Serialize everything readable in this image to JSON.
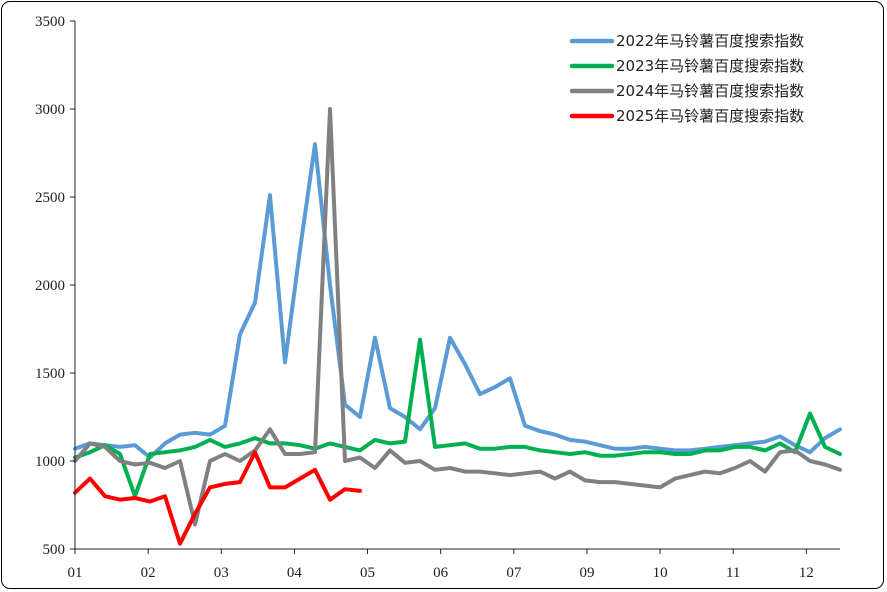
{
  "chart_data": {
    "type": "line",
    "title": "",
    "xlabel": "",
    "ylabel": "",
    "ylim": [
      500,
      3500
    ],
    "yticks": [
      500,
      1000,
      1500,
      2000,
      2500,
      3000,
      3500
    ],
    "xticks": [
      "01",
      "02",
      "03",
      "04",
      "05",
      "06",
      "07",
      "09",
      "10",
      "11",
      "12"
    ],
    "x_units": "week of year (1-52)",
    "grid": false,
    "legend_position": "top-right",
    "series": [
      {
        "name": "2022年马铃薯百度搜索指数",
        "color": "#5B9BD5",
        "x": [
          1,
          2,
          3,
          4,
          5,
          6,
          7,
          8,
          9,
          10,
          11,
          12,
          13,
          14,
          15,
          16,
          17,
          18,
          19,
          20,
          21,
          22,
          23,
          24,
          25,
          26,
          27,
          28,
          29,
          30,
          31,
          32,
          33,
          34,
          35,
          36,
          37,
          38,
          39,
          40,
          41,
          42,
          43,
          44,
          45,
          46,
          47,
          48,
          49,
          50,
          51,
          52
        ],
        "values": [
          1070,
          1100,
          1090,
          1080,
          1090,
          1020,
          1100,
          1150,
          1160,
          1150,
          1200,
          1720,
          1900,
          2510,
          1560,
          2200,
          2800,
          2000,
          1320,
          1250,
          1700,
          1300,
          1250,
          1180,
          1300,
          1700,
          1550,
          1380,
          1420,
          1470,
          1200,
          1170,
          1150,
          1120,
          1110,
          1090,
          1070,
          1070,
          1080,
          1070,
          1060,
          1060,
          1070,
          1080,
          1090,
          1100,
          1110,
          1140,
          1090,
          1050,
          1130,
          1180
        ]
      },
      {
        "name": "2023年马铃薯百度搜索指数",
        "color": "#00B050",
        "x": [
          1,
          2,
          3,
          4,
          5,
          6,
          7,
          8,
          9,
          10,
          11,
          12,
          13,
          14,
          15,
          16,
          17,
          18,
          19,
          20,
          21,
          22,
          23,
          24,
          25,
          26,
          27,
          28,
          29,
          30,
          31,
          32,
          33,
          34,
          35,
          36,
          37,
          38,
          39,
          40,
          41,
          42,
          43,
          44,
          45,
          46,
          47,
          48,
          49,
          50,
          51,
          52
        ],
        "values": [
          1020,
          1050,
          1090,
          1040,
          800,
          1040,
          1050,
          1060,
          1080,
          1120,
          1080,
          1100,
          1130,
          1100,
          1100,
          1090,
          1070,
          1100,
          1080,
          1060,
          1120,
          1100,
          1110,
          1690,
          1080,
          1090,
          1100,
          1070,
          1070,
          1080,
          1080,
          1060,
          1050,
          1040,
          1050,
          1030,
          1030,
          1040,
          1050,
          1050,
          1040,
          1040,
          1060,
          1060,
          1080,
          1080,
          1060,
          1100,
          1050,
          1270,
          1080,
          1040
        ]
      },
      {
        "name": "2024年马铃薯百度搜索指数",
        "color": "#808080",
        "x": [
          1,
          2,
          3,
          4,
          5,
          6,
          7,
          8,
          9,
          10,
          11,
          12,
          13,
          14,
          15,
          16,
          17,
          18,
          19,
          20,
          21,
          22,
          23,
          24,
          25,
          26,
          27,
          28,
          29,
          30,
          31,
          32,
          33,
          34,
          35,
          36,
          37,
          38,
          39,
          40,
          41,
          42,
          43,
          44,
          45,
          46,
          47,
          48,
          49,
          50,
          51,
          52
        ],
        "values": [
          1000,
          1100,
          1080,
          1000,
          980,
          990,
          960,
          1000,
          640,
          1000,
          1040,
          1000,
          1060,
          1180,
          1040,
          1040,
          1050,
          3000,
          1000,
          1020,
          960,
          1060,
          990,
          1000,
          950,
          960,
          940,
          940,
          930,
          920,
          930,
          940,
          900,
          940,
          890,
          880,
          880,
          870,
          860,
          850,
          900,
          920,
          940,
          930,
          960,
          1000,
          940,
          1050,
          1060,
          1000,
          980,
          950
        ]
      },
      {
        "name": "2025年马铃薯百度搜索指数",
        "color": "#FF0000",
        "x": [
          1,
          2,
          3,
          4,
          5,
          6,
          7,
          8,
          9,
          10,
          11,
          12,
          13,
          14,
          15,
          16,
          17,
          18,
          19,
          20,
          21,
          22,
          23,
          24,
          25,
          26,
          27,
          28,
          29,
          30,
          31,
          32,
          33,
          34,
          35,
          36,
          37,
          38,
          39,
          40,
          41,
          42,
          43,
          44,
          45,
          46,
          47,
          48,
          49,
          50,
          51,
          52
        ],
        "values": [
          820,
          900,
          800,
          780,
          790,
          770,
          800,
          530,
          700,
          850,
          870,
          880,
          1050,
          850,
          850,
          900,
          950,
          780,
          840,
          830,
          null,
          null,
          null,
          null,
          null,
          null,
          null,
          null,
          null,
          null,
          null,
          null,
          null,
          null,
          null,
          null,
          null,
          null,
          null,
          null,
          null,
          null,
          null,
          null,
          null,
          null,
          null,
          null,
          null,
          null,
          null,
          null
        ]
      }
    ]
  }
}
